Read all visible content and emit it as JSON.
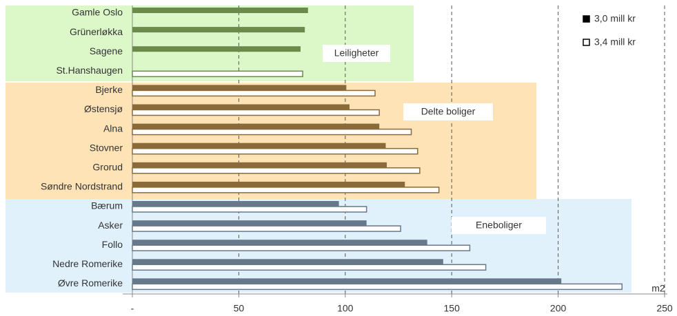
{
  "chart_data": {
    "type": "bar",
    "orientation": "horizontal",
    "x_label": "m2",
    "xlim": [
      0,
      250
    ],
    "xticks": [
      {
        "value": 0,
        "label": "-"
      },
      50,
      100,
      150,
      200,
      250
    ],
    "grid": true,
    "legend": "top-right",
    "series": [
      {
        "name": "3,0 mill kr",
        "color": "#000000"
      },
      {
        "name": "3,4 mill kr",
        "color": "#ffffff"
      }
    ],
    "groups": [
      {
        "name": "Leiligheter",
        "background": "#dcf7c8",
        "color": "#6b8a4c",
        "categories": [
          "Gamle Oslo",
          "Grünerløkka",
          "Sagene",
          "St.Hanshaugen"
        ],
        "series": [
          {
            "values": [
              82.5,
              81,
              79,
              null
            ]
          },
          {
            "values": [
              null,
              null,
              null,
              80
            ]
          }
        ]
      },
      {
        "name": "Delte boliger",
        "background": "#fde3b6",
        "color": "#8a6a38",
        "categories": [
          "Bjerke",
          "Østensjø",
          "Alna",
          "Stovner",
          "Grorud",
          "Søndre Nordstrand"
        ],
        "series": [
          {
            "values": [
              100.5,
              102,
              116,
              119,
              119.5,
              128
            ]
          },
          {
            "values": [
              114,
              116,
              131,
              134,
              135,
              144
            ]
          }
        ]
      },
      {
        "name": "Eneboliger",
        "background": "#e0f1fc",
        "color": "#66788a",
        "categories": [
          "Bærum",
          "Asker",
          "Follo",
          "Nedre Romerike",
          "Øvre Romerike"
        ],
        "series": [
          {
            "values": [
              97,
              110,
              138.5,
              146,
              201.5
            ]
          },
          {
            "values": [
              110,
              126,
              158.5,
              166,
              230
            ]
          }
        ]
      }
    ]
  }
}
